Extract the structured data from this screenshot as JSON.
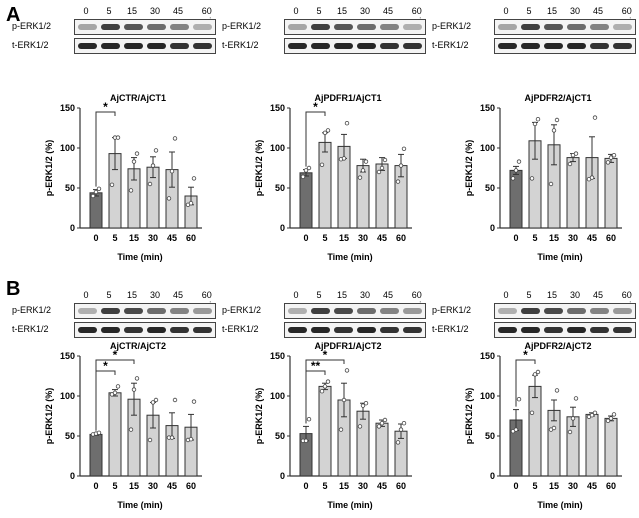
{
  "panels": [
    {
      "label": "A",
      "blot_rows": [
        "p-ERK1/2",
        "t-ERK1/2"
      ],
      "blot_times": [
        "0",
        "5",
        "15",
        "30",
        "45",
        "60 min"
      ]
    },
    {
      "label": "B",
      "blot_rows": [
        "p-ERK1/2",
        "t-ERK1/2"
      ],
      "blot_times": [
        "0",
        "5",
        "15",
        "30",
        "45",
        "60 min"
      ]
    }
  ],
  "colors": {
    "control_bar": "#6e6e6e",
    "treatment_bar": "#d3d3d3"
  },
  "chart_data": [
    {
      "type": "bar",
      "title": "AjCTR/AjCT1",
      "xlabel": "Time (min)",
      "ylabel": "p-ERK1/2 (%)",
      "ylim": [
        0,
        150
      ],
      "yticks": [
        0,
        50,
        100,
        150
      ],
      "categories": [
        "0",
        "5",
        "15",
        "30",
        "45",
        "60"
      ],
      "values": [
        44,
        93,
        74,
        76,
        73,
        40
      ],
      "errors": [
        4,
        20,
        14,
        13,
        22,
        11
      ],
      "points": [
        [
          40,
          45,
          49
        ],
        [
          54,
          113,
          113
        ],
        [
          47,
          83,
          93
        ],
        [
          55,
          78,
          97
        ],
        [
          37,
          71,
          112
        ],
        [
          29,
          31,
          62
        ]
      ],
      "significance": [
        {
          "from": "0",
          "to": "5",
          "label": "*"
        }
      ]
    },
    {
      "type": "bar",
      "title": "AjPDFR1/AjCT1",
      "xlabel": "Time (min)",
      "ylabel": "p-ERK1/2 (%)",
      "ylim": [
        0,
        150
      ],
      "yticks": [
        0,
        50,
        100,
        150
      ],
      "categories": [
        "0",
        "5",
        "15",
        "30",
        "45",
        "60"
      ],
      "values": [
        69,
        107,
        102,
        78,
        80,
        78
      ],
      "errors": [
        4,
        12,
        15,
        8,
        8,
        14
      ],
      "points": [
        [
          64,
          72,
          75
        ],
        [
          79,
          119,
          122
        ],
        [
          86,
          87,
          131
        ],
        [
          63,
          72,
          83
        ],
        [
          70,
          75,
          85
        ],
        [
          58,
          78,
          99
        ]
      ],
      "significance": [
        {
          "from": "0",
          "to": "5",
          "label": "*"
        }
      ]
    },
    {
      "type": "bar",
      "title": "AjPDFR2/AjCT1",
      "xlabel": "Time (min)",
      "ylabel": "p-ERK1/2 (%)",
      "ylim": [
        0,
        150
      ],
      "yticks": [
        0,
        50,
        100,
        150
      ],
      "categories": [
        "0",
        "5",
        "15",
        "30",
        "45",
        "60"
      ],
      "values": [
        72,
        109,
        104,
        88,
        88,
        87
      ],
      "errors": [
        5,
        23,
        25,
        5,
        26,
        5
      ],
      "points": [
        [
          62,
          72,
          83
        ],
        [
          62,
          130,
          136
        ],
        [
          55,
          122,
          135
        ],
        [
          80,
          91,
          93
        ],
        [
          61,
          63,
          138
        ],
        [
          82,
          88,
          91
        ]
      ],
      "significance": []
    },
    {
      "type": "bar",
      "title": "AjCTR/AjCT2",
      "xlabel": "Time (min)",
      "ylabel": "p-ERK1/2 (%)",
      "ylim": [
        0,
        150
      ],
      "yticks": [
        0,
        50,
        100,
        150
      ],
      "categories": [
        "0",
        "5",
        "15",
        "30",
        "45",
        "60"
      ],
      "values": [
        52,
        104,
        96,
        76,
        63,
        61
      ],
      "errors": [
        1,
        4,
        20,
        16,
        16,
        16
      ],
      "points": [
        [
          52,
          53,
          54
        ],
        [
          102,
          104,
          112
        ],
        [
          58,
          108,
          122
        ],
        [
          45,
          92,
          95
        ],
        [
          48,
          48,
          95
        ],
        [
          45,
          46,
          93
        ]
      ],
      "significance": [
        {
          "from": "0",
          "to": "5",
          "label": "*"
        },
        {
          "from": "0",
          "to": "15",
          "label": "*"
        }
      ]
    },
    {
      "type": "bar",
      "title": "AjPDFR1/AjCT2",
      "xlabel": "Time (min)",
      "ylabel": "p-ERK1/2 (%)",
      "ylim": [
        0,
        150
      ],
      "yticks": [
        0,
        50,
        100,
        150
      ],
      "categories": [
        "0",
        "5",
        "15",
        "30",
        "45",
        "60"
      ],
      "values": [
        53,
        112,
        95,
        81,
        66,
        56
      ],
      "errors": [
        9,
        4,
        21,
        10,
        4,
        9
      ],
      "points": [
        [
          44,
          44,
          71
        ],
        [
          106,
          112,
          118
        ],
        [
          58,
          95,
          132
        ],
        [
          62,
          88,
          91
        ],
        [
          62,
          66,
          70
        ],
        [
          42,
          58,
          66
        ]
      ],
      "significance": [
        {
          "from": "0",
          "to": "5",
          "label": "**"
        },
        {
          "from": "0",
          "to": "15",
          "label": "*"
        }
      ]
    },
    {
      "type": "bar",
      "title": "AjPDFR2/AjCT2",
      "xlabel": "Time (min)",
      "ylabel": "p-ERK1/2 (%)",
      "ylim": [
        0,
        150
      ],
      "yticks": [
        0,
        50,
        100,
        150
      ],
      "categories": [
        "0",
        "5",
        "15",
        "30",
        "45",
        "60"
      ],
      "values": [
        70,
        112,
        82,
        74,
        77,
        72
      ],
      "errors": [
        13,
        14,
        13,
        12,
        2,
        3
      ],
      "points": [
        [
          56,
          58,
          96
        ],
        [
          79,
          127,
          130
        ],
        [
          58,
          60,
          107
        ],
        [
          55,
          72,
          97
        ],
        [
          74,
          76,
          79
        ],
        [
          69,
          72,
          77
        ]
      ],
      "significance": [
        {
          "from": "0",
          "to": "5",
          "label": "*"
        }
      ]
    }
  ]
}
